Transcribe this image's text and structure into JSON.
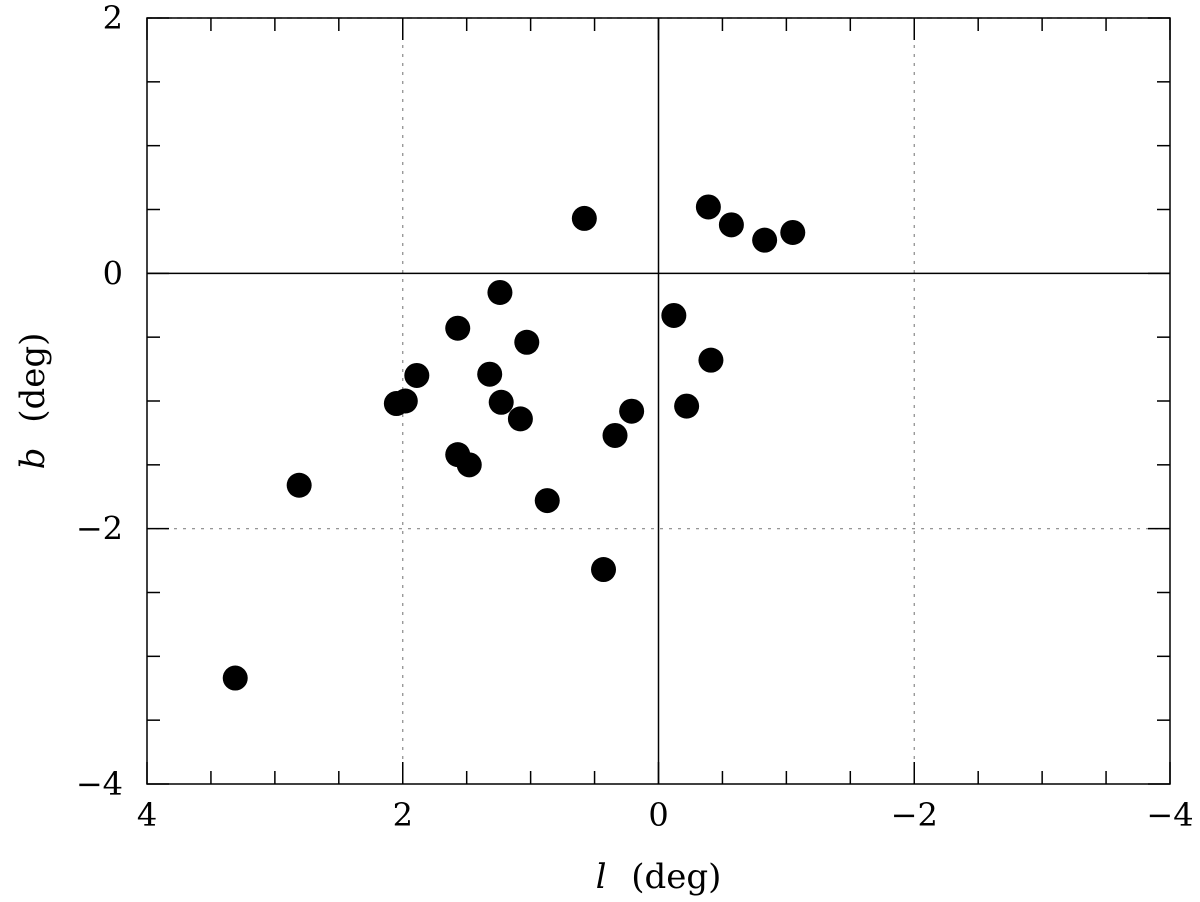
{
  "chart_data": {
    "type": "scatter",
    "title": "",
    "xlabel": {
      "symbol": "l",
      "unit": "(deg)"
    },
    "ylabel": {
      "symbol": "b",
      "unit": "(deg)"
    },
    "xlim": [
      4,
      -4
    ],
    "ylim": [
      -4,
      2
    ],
    "x_reversed": true,
    "x_ticks": [
      4,
      2,
      0,
      -2,
      -4
    ],
    "x_tick_labels": [
      "4",
      "2",
      "0",
      "−2",
      "−4"
    ],
    "y_ticks": [
      -4,
      -2,
      0,
      2
    ],
    "y_tick_labels": [
      "−4",
      "−2",
      "0",
      "2"
    ],
    "grid": {
      "x": [
        2,
        -2
      ],
      "y": [
        -2
      ],
      "style": "dotted"
    },
    "zero_lines": {
      "x": 0,
      "y": 0,
      "style": "solid"
    },
    "marker": {
      "shape": "circle",
      "color": "#000000",
      "filled": true
    },
    "series": [
      {
        "x": [
          0.58,
          -0.39,
          -0.57,
          -0.83,
          -1.05,
          1.24,
          1.57,
          1.03,
          1.32,
          1.89,
          1.98,
          2.05,
          1.23,
          1.08,
          1.57,
          1.48,
          0.87,
          0.34,
          0.21,
          -0.12,
          -0.41,
          -0.22,
          2.81,
          0.43,
          3.31
        ],
        "y": [
          0.43,
          0.52,
          0.38,
          0.26,
          0.32,
          -0.15,
          -0.43,
          -0.54,
          -0.79,
          -0.8,
          -1.0,
          -1.02,
          -1.01,
          -1.14,
          -1.42,
          -1.5,
          -1.78,
          -1.27,
          -1.08,
          -0.33,
          -0.68,
          -1.04,
          -1.66,
          -2.32,
          -3.17
        ]
      }
    ]
  }
}
